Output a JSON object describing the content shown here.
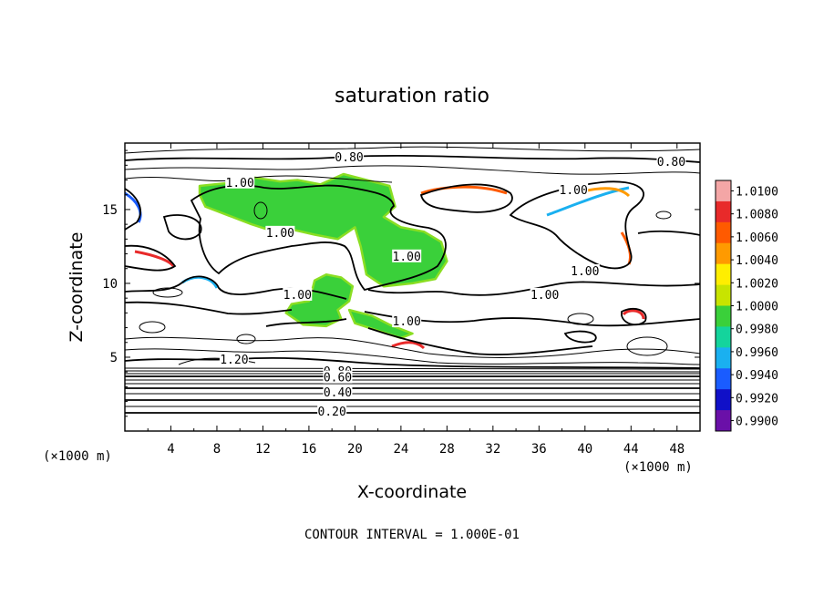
{
  "chart_data": {
    "type": "heatmap",
    "title": "saturation ratio",
    "xlabel": "X-coordinate",
    "ylabel": "Z-coordinate",
    "x_unit": "(×1000 m)",
    "y_unit": "(×1000 m)",
    "xlim": [
      0,
      50
    ],
    "ylim": [
      0,
      19.5
    ],
    "x_ticks": [
      4,
      8,
      12,
      16,
      20,
      24,
      28,
      32,
      36,
      40,
      44,
      48
    ],
    "y_ticks": [
      5,
      10,
      15
    ],
    "footer": "CONTOUR INTERVAL = 1.000E-01",
    "colorbar": {
      "levels": [
        "1.0100",
        "1.0080",
        "1.0060",
        "1.0040",
        "1.0020",
        "1.0000",
        "0.9980",
        "0.9960",
        "0.9940",
        "0.9920",
        "0.9900"
      ],
      "colors": [
        "#f4a6a6",
        "#e82a2a",
        "#ff5a00",
        "#ff9a00",
        "#ffee00",
        "#c8e400",
        "#3ad03a",
        "#14d49c",
        "#1ab0f0",
        "#1a5cff",
        "#1010c8",
        "#6a10a8"
      ]
    },
    "contour_labels": [
      {
        "text": "0.80",
        "x": 19.5,
        "z": 18.5
      },
      {
        "text": "0.80",
        "x": 47.5,
        "z": 18.2
      },
      {
        "text": "1.00",
        "x": 10,
        "z": 16.8
      },
      {
        "text": "1.00",
        "x": 39,
        "z": 16.3
      },
      {
        "text": "1.00",
        "x": 13.5,
        "z": 13.4
      },
      {
        "text": "1.00",
        "x": 24.5,
        "z": 11.8
      },
      {
        "text": "1.00",
        "x": 40,
        "z": 10.8
      },
      {
        "text": "1.00",
        "x": 15,
        "z": 9.2
      },
      {
        "text": "1.00",
        "x": 36.5,
        "z": 9.2
      },
      {
        "text": "1.00",
        "x": 24.5,
        "z": 7.4
      },
      {
        "text": "1.20",
        "x": 9.5,
        "z": 4.8
      },
      {
        "text": "0.80",
        "x": 18.5,
        "z": 4.0
      },
      {
        "text": "0.60",
        "x": 18.5,
        "z": 3.6
      },
      {
        "text": "0.40",
        "x": 18.5,
        "z": 2.6
      },
      {
        "text": "0.20",
        "x": 18,
        "z": 1.3
      }
    ],
    "supersaturated_regions": [
      {
        "label": "upper-left cloud",
        "points": [
          [
            6.5,
            16.6
          ],
          [
            9,
            16.8
          ],
          [
            11,
            17.2
          ],
          [
            13.5,
            16.9
          ],
          [
            15,
            17
          ],
          [
            17,
            16.7
          ],
          [
            19,
            17.4
          ],
          [
            21,
            17
          ],
          [
            23,
            16.6
          ],
          [
            23.5,
            15.2
          ],
          [
            22.5,
            14.5
          ],
          [
            24,
            13.8
          ],
          [
            26,
            13.5
          ],
          [
            27.5,
            12.8
          ],
          [
            28,
            11.5
          ],
          [
            27,
            10.3
          ],
          [
            25,
            10
          ],
          [
            22.5,
            9.8
          ],
          [
            21,
            10.6
          ],
          [
            20.5,
            12.5
          ],
          [
            20,
            13.8
          ],
          [
            18.5,
            13
          ],
          [
            16.5,
            13.3
          ],
          [
            14.8,
            13.6
          ],
          [
            13,
            13.5
          ],
          [
            11,
            14
          ],
          [
            9,
            14.6
          ],
          [
            7,
            15.2
          ],
          [
            6.5,
            16
          ]
        ]
      },
      {
        "label": "middle cloud",
        "points": [
          [
            16.5,
            10.2
          ],
          [
            17.5,
            10.6
          ],
          [
            18.8,
            10.4
          ],
          [
            19.8,
            9.8
          ],
          [
            19.5,
            8.8
          ],
          [
            18.5,
            8.2
          ],
          [
            18.8,
            7.6
          ],
          [
            17.5,
            7.1
          ],
          [
            15.5,
            7.2
          ],
          [
            14,
            8
          ],
          [
            14.5,
            8.6
          ],
          [
            16,
            8.8
          ],
          [
            16.3,
            9.6
          ]
        ]
      },
      {
        "label": "lower streak",
        "points": [
          [
            19.5,
            8.2
          ],
          [
            21.5,
            7.8
          ],
          [
            23,
            7.2
          ],
          [
            25,
            6.6
          ],
          [
            24,
            6.3
          ],
          [
            22,
            6.8
          ],
          [
            20,
            7.3
          ]
        ]
      }
    ]
  }
}
